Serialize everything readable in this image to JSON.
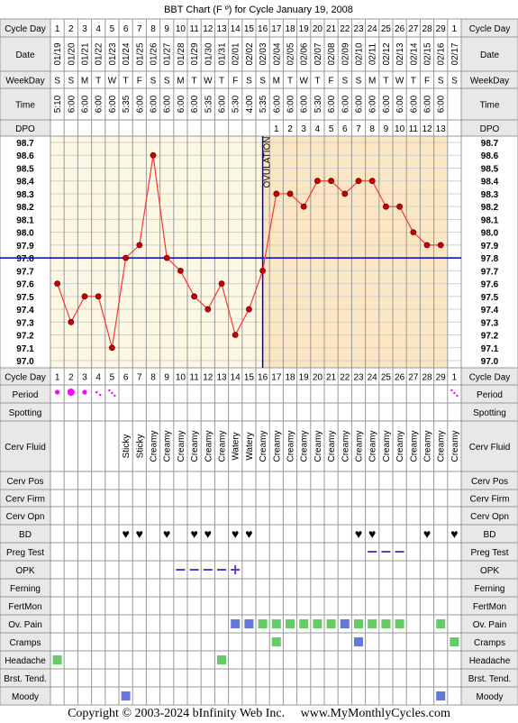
{
  "title": "BBT Chart (F º) for Cycle January 19, 2008",
  "footer": "Copyright © 2003-2024 bInfinity Web Inc.     www.MyMonthlyCycles.com",
  "colors": {
    "grid": "#999999",
    "header_bg": "#e8e8e8",
    "pre_ov_bg": "#fdf8e4",
    "post_ov_bg": "#fbe6c3",
    "temp_line": "#ff3333",
    "temp_point": "#cc0000",
    "coverline": "#0000cc",
    "ovulation_line": "#0000cc",
    "period": "#ff00ff",
    "bd": "#ff3399",
    "block_green": "#66cc66",
    "block_blue": "#6677dd",
    "dash": "#6633cc"
  },
  "labels": {
    "cycle_day": "Cycle Day",
    "date": "Date",
    "weekday": "WeekDay",
    "time": "Time",
    "dpo": "DPO",
    "ovulation": "OVULATION"
  },
  "columns": {
    "cycle_day": [
      "1",
      "2",
      "3",
      "4",
      "5",
      "6",
      "7",
      "8",
      "9",
      "10",
      "11",
      "12",
      "13",
      "14",
      "15",
      "16",
      "17",
      "18",
      "19",
      "20",
      "21",
      "22",
      "23",
      "24",
      "25",
      "26",
      "27",
      "28",
      "29",
      "1"
    ],
    "date": [
      "01/19",
      "01/20",
      "01/21",
      "01/22",
      "01/23",
      "01/24",
      "01/25",
      "01/26",
      "01/27",
      "01/28",
      "01/29",
      "01/30",
      "01/31",
      "02/01",
      "02/02",
      "02/03",
      "02/04",
      "02/05",
      "02/06",
      "02/07",
      "02/08",
      "02/09",
      "02/10",
      "02/11",
      "02/12",
      "02/13",
      "02/14",
      "02/15",
      "02/16",
      "02/17"
    ],
    "weekday": [
      "S",
      "S",
      "M",
      "T",
      "W",
      "T",
      "F",
      "S",
      "S",
      "M",
      "T",
      "W",
      "T",
      "F",
      "S",
      "S",
      "M",
      "T",
      "W",
      "T",
      "F",
      "S",
      "S",
      "M",
      "T",
      "W",
      "T",
      "F",
      "S",
      "S"
    ],
    "time": [
      "5:10",
      "6:00",
      "6:00",
      "6:00",
      "6:00",
      "5:35",
      "6:00",
      "6:00",
      "6:00",
      "6:00",
      "6:00",
      "5:35",
      "6:00",
      "5:30",
      "4:00",
      "5:35",
      "6:00",
      "6:00",
      "6:00",
      "5:30",
      "6:00",
      "6:00",
      "6:00",
      "6:00",
      "6:00",
      "6:00",
      "6:00",
      "6:00",
      "6:00",
      ""
    ],
    "dpo": [
      "",
      "",
      "",
      "",
      "",
      "",
      "",
      "",
      "",
      "",
      "",
      "",
      "",
      "",
      "",
      "",
      "1",
      "2",
      "3",
      "4",
      "5",
      "6",
      "7",
      "8",
      "9",
      "10",
      "11",
      "12",
      "13",
      ""
    ]
  },
  "chart_data": {
    "type": "line",
    "title": "BBT Chart (F º) for Cycle January 19, 2008",
    "xlabel": "Cycle Day",
    "ylabel": "",
    "x": [
      1,
      2,
      3,
      4,
      5,
      6,
      7,
      8,
      9,
      10,
      11,
      12,
      13,
      14,
      15,
      16,
      17,
      18,
      19,
      20,
      21,
      22,
      23,
      24,
      25,
      26,
      27,
      28,
      29
    ],
    "series": [
      {
        "name": "",
        "values": [
          97.6,
          97.3,
          97.5,
          97.5,
          97.1,
          97.8,
          97.9,
          98.6,
          97.8,
          97.7,
          97.5,
          97.4,
          97.6,
          97.2,
          97.4,
          97.7,
          98.3,
          98.3,
          98.2,
          98.4,
          98.4,
          98.3,
          98.4,
          98.4,
          98.2,
          98.2,
          98.0,
          97.9,
          97.9
        ]
      }
    ],
    "ylim": [
      97.0,
      98.7
    ],
    "yticks": [
      "98.7",
      "98.6",
      "98.5",
      "98.4",
      "98.3",
      "98.2",
      "98.1",
      "98.0",
      "97.9",
      "97.8",
      "97.7",
      "97.6",
      "97.5",
      "97.4",
      "97.3",
      "97.2",
      "97.1",
      "97.0"
    ],
    "coverline": 97.8,
    "ovulation_day": 16,
    "grid": true
  },
  "tracking": {
    "period": [
      {
        "day": 1,
        "v": "medium"
      },
      {
        "day": 2,
        "v": "heavy"
      },
      {
        "day": 3,
        "v": "medium"
      },
      {
        "day": 4,
        "v": "light"
      },
      {
        "day": 5,
        "v": "spotting"
      },
      {
        "day": 30,
        "v": "spotting"
      }
    ],
    "cerv_fluid": [
      {
        "day": 6,
        "v": "Sticky"
      },
      {
        "day": 7,
        "v": "Sticky"
      },
      {
        "day": 8,
        "v": "Creamy"
      },
      {
        "day": 9,
        "v": "Creamy"
      },
      {
        "day": 10,
        "v": "Creamy"
      },
      {
        "day": 11,
        "v": "Creamy"
      },
      {
        "day": 12,
        "v": "Creamy"
      },
      {
        "day": 13,
        "v": "Creamy"
      },
      {
        "day": 14,
        "v": "Watery"
      },
      {
        "day": 15,
        "v": "Watery"
      },
      {
        "day": 16,
        "v": "Creamy"
      },
      {
        "day": 17,
        "v": "Creamy"
      },
      {
        "day": 18,
        "v": "Creamy"
      },
      {
        "day": 19,
        "v": "Creamy"
      },
      {
        "day": 20,
        "v": "Creamy"
      },
      {
        "day": 21,
        "v": "Creamy"
      },
      {
        "day": 22,
        "v": "Creamy"
      },
      {
        "day": 23,
        "v": "Creamy"
      },
      {
        "day": 24,
        "v": "Creamy"
      },
      {
        "day": 25,
        "v": "Creamy"
      },
      {
        "day": 26,
        "v": "Creamy"
      },
      {
        "day": 27,
        "v": "Creamy"
      },
      {
        "day": 28,
        "v": "Creamy"
      },
      {
        "day": 29,
        "v": "Creamy"
      },
      {
        "day": 30,
        "v": "Creamy"
      }
    ],
    "bd": [
      6,
      7,
      9,
      11,
      12,
      14,
      15,
      23,
      24,
      28,
      30
    ],
    "preg_test": [
      24,
      25,
      26
    ],
    "opk": [
      {
        "day": 10,
        "v": "neg"
      },
      {
        "day": 11,
        "v": "neg"
      },
      {
        "day": 12,
        "v": "neg"
      },
      {
        "day": 13,
        "v": "neg"
      },
      {
        "day": 14,
        "v": "pos"
      }
    ],
    "ov_pain": [
      {
        "day": 14,
        "v": "blue"
      },
      {
        "day": 15,
        "v": "blue"
      },
      {
        "day": 16,
        "v": "green"
      },
      {
        "day": 17,
        "v": "green"
      },
      {
        "day": 18,
        "v": "green"
      },
      {
        "day": 19,
        "v": "green"
      },
      {
        "day": 20,
        "v": "green"
      },
      {
        "day": 21,
        "v": "green"
      },
      {
        "day": 22,
        "v": "blue"
      },
      {
        "day": 23,
        "v": "green"
      },
      {
        "day": 24,
        "v": "green"
      },
      {
        "day": 25,
        "v": "green"
      },
      {
        "day": 26,
        "v": "green"
      },
      {
        "day": 29,
        "v": "green"
      }
    ],
    "cramps": [
      {
        "day": 17,
        "v": "green"
      },
      {
        "day": 23,
        "v": "blue"
      },
      {
        "day": 30,
        "v": "green"
      }
    ],
    "headache": [
      {
        "day": 1,
        "v": "green"
      },
      {
        "day": 13,
        "v": "green"
      }
    ],
    "moody": [
      {
        "day": 6,
        "v": "blue"
      },
      {
        "day": 29,
        "v": "blue"
      }
    ]
  },
  "rows": [
    "Cycle Day",
    "Period",
    "Spotting",
    "Cerv Fluid",
    "Cerv Pos",
    "Cerv Firm",
    "Cerv Opn",
    "BD",
    "Preg Test",
    "OPK",
    "Ferning",
    "FertMon",
    "Ov. Pain",
    "Cramps",
    "Headache",
    "Brst. Tend.",
    "Moody"
  ]
}
